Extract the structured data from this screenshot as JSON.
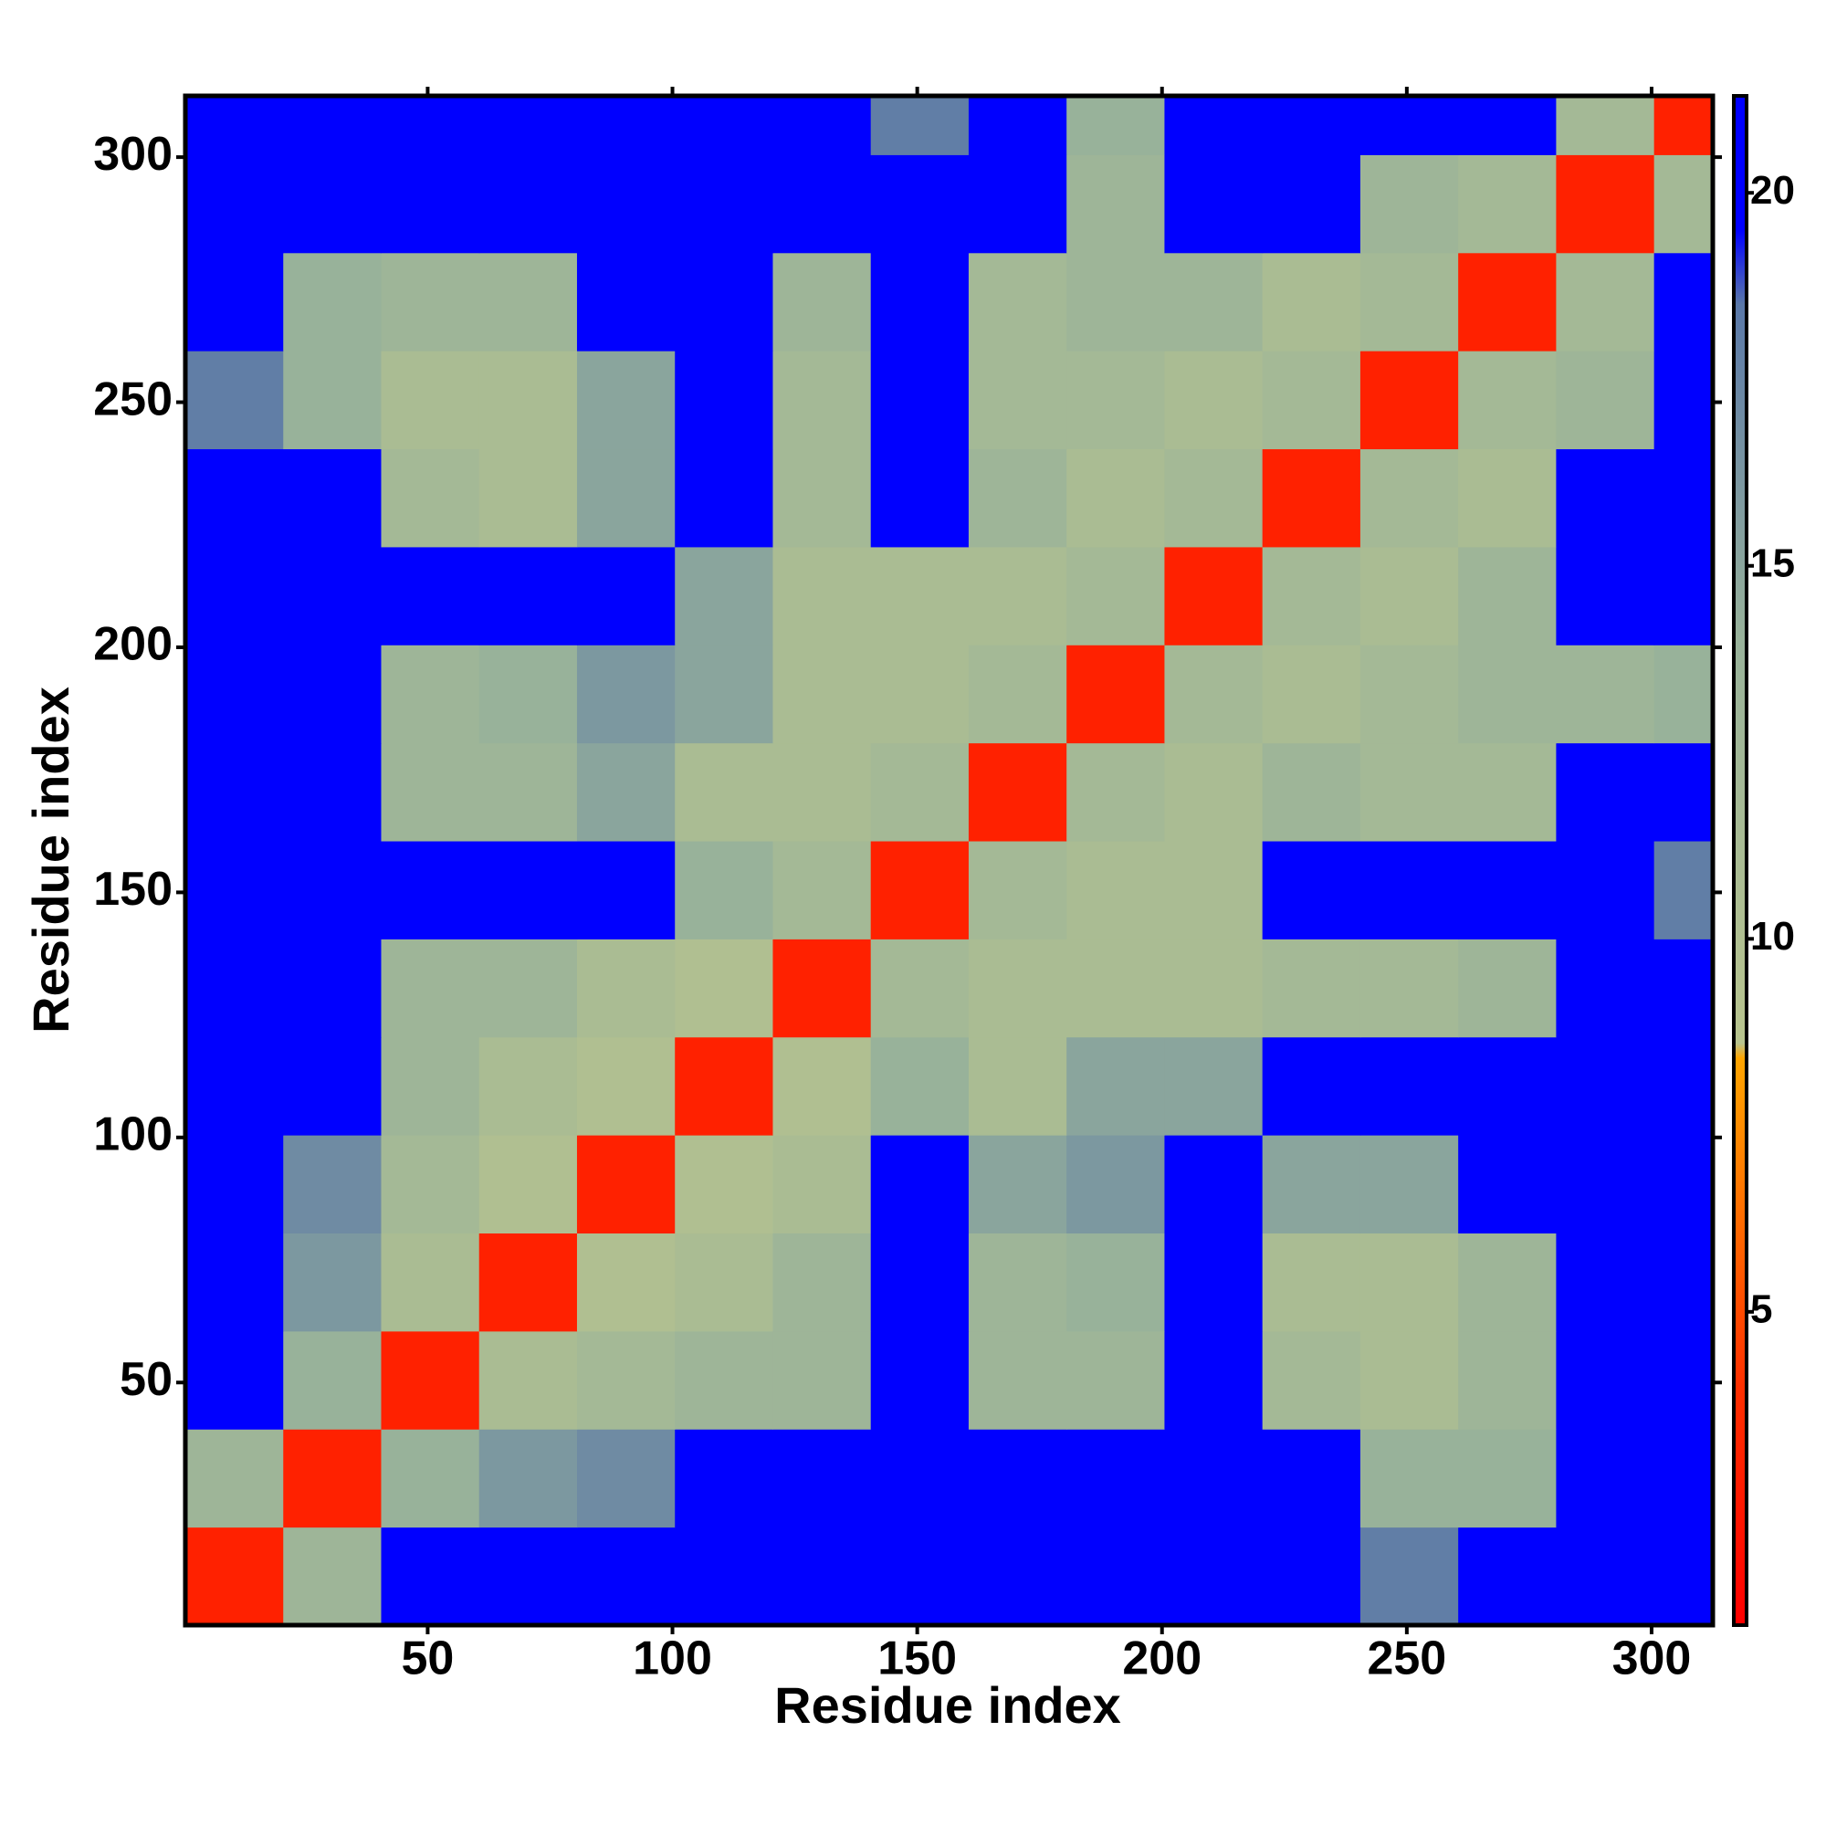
{
  "chart_data": {
    "type": "heatmap",
    "x_title": "Residue index",
    "y_title": "Residue index",
    "x_edges": [
      0.5,
      20.5,
      40.5,
      60.5,
      80.5,
      100.5,
      120.5,
      140.5,
      160.5,
      180.5,
      200.5,
      220.5,
      240.5,
      260.5,
      280.5,
      300.5,
      312.5
    ],
    "y_edges": [
      0.5,
      20.5,
      40.5,
      60.5,
      80.5,
      100.5,
      120.5,
      140.5,
      160.5,
      180.5,
      200.5,
      220.5,
      240.5,
      260.5,
      280.5,
      300.5,
      312.5
    ],
    "z": [
      [
        3,
        13,
        21,
        21,
        21,
        21,
        21,
        21,
        21,
        21,
        21,
        21,
        18,
        21,
        21,
        21
      ],
      [
        13,
        3,
        14,
        16,
        17,
        21,
        21,
        21,
        21,
        21,
        21,
        21,
        14,
        14,
        21,
        21
      ],
      [
        21,
        14,
        3,
        11,
        12,
        13,
        13,
        21,
        13,
        13,
        21,
        12,
        11,
        13,
        21,
        21
      ],
      [
        21,
        16,
        11,
        3,
        10,
        11,
        13,
        21,
        13,
        14,
        21,
        11,
        11,
        13,
        21,
        21
      ],
      [
        21,
        17,
        12,
        10,
        3,
        10,
        11,
        21,
        15,
        16,
        21,
        15,
        15,
        21,
        21,
        21
      ],
      [
        21,
        21,
        13,
        11,
        10,
        3,
        10,
        14,
        11,
        15,
        15,
        21,
        21,
        21,
        21,
        21
      ],
      [
        21,
        21,
        13,
        13,
        11,
        10,
        3,
        12,
        11,
        11,
        11,
        12,
        12,
        13,
        21,
        21
      ],
      [
        21,
        21,
        21,
        21,
        21,
        14,
        12,
        3,
        12,
        11,
        11,
        21,
        21,
        21,
        21,
        18
      ],
      [
        21,
        21,
        13,
        13,
        15,
        11,
        11,
        12,
        3,
        12,
        11,
        13,
        12,
        12,
        21,
        21
      ],
      [
        21,
        21,
        13,
        14,
        16,
        15,
        11,
        11,
        12,
        3,
        12,
        11,
        12,
        13,
        13,
        14
      ],
      [
        21,
        21,
        21,
        21,
        21,
        15,
        11,
        11,
        11,
        12,
        3,
        12,
        11,
        13,
        21,
        21
      ],
      [
        21,
        21,
        12,
        11,
        15,
        21,
        12,
        21,
        13,
        11,
        12,
        3,
        12,
        11,
        21,
        21
      ],
      [
        18,
        14,
        11,
        11,
        15,
        21,
        12,
        21,
        12,
        12,
        11,
        12,
        3,
        12,
        13,
        21
      ],
      [
        21,
        14,
        13,
        13,
        21,
        21,
        13,
        21,
        12,
        13,
        13,
        11,
        12,
        3,
        12,
        21
      ],
      [
        21,
        21,
        21,
        21,
        21,
        21,
        21,
        21,
        21,
        13,
        21,
        21,
        13,
        12,
        3,
        12
      ],
      [
        21,
        21,
        21,
        21,
        21,
        21,
        21,
        18,
        21,
        14,
        21,
        21,
        21,
        21,
        12,
        3
      ]
    ],
    "xlim": [
      0.5,
      312.5
    ],
    "ylim": [
      0.5,
      312.5
    ],
    "xticks": [
      50,
      100,
      150,
      200,
      250,
      300
    ],
    "yticks": [
      50,
      100,
      150,
      200,
      250,
      300
    ],
    "zlim": [
      0.8,
      21.3
    ],
    "zticks": [
      5,
      10,
      15,
      20
    ],
    "colorscale": [
      [
        0.8,
        "#ff0000"
      ],
      [
        4,
        "#ff3000"
      ],
      [
        8.4,
        "#ffa500"
      ],
      [
        8.6,
        "#b8c48e"
      ],
      [
        14,
        "#98b29a"
      ],
      [
        18.5,
        "#5a78a8"
      ],
      [
        19.5,
        "#0000ff"
      ],
      [
        21.3,
        "#0000ff"
      ]
    ]
  }
}
